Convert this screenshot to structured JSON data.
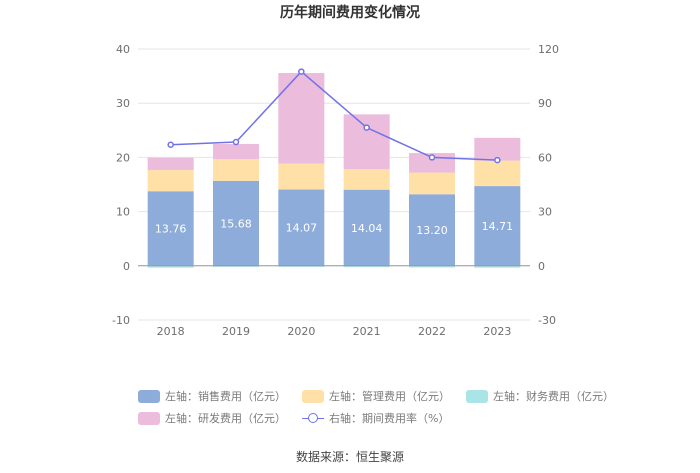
{
  "chart_data": {
    "type": "bar",
    "title": "历年期间费用变化情况",
    "categories": [
      "2018",
      "2019",
      "2020",
      "2021",
      "2022",
      "2023"
    ],
    "left_axis": {
      "min": -10,
      "max": 40,
      "ticks": [
        -10,
        0,
        10,
        20,
        30,
        40
      ]
    },
    "right_axis": {
      "min": -30,
      "max": 120,
      "ticks": [
        -30,
        0,
        30,
        60,
        90,
        120
      ]
    },
    "stacked_series": [
      {
        "name": "左轴：销售费用（亿元）",
        "color": "#8eacd9",
        "values": [
          13.76,
          15.68,
          14.07,
          14.04,
          13.2,
          14.71
        ],
        "labels": [
          "13.76",
          "15.68",
          "14.07",
          "14.04",
          "13.20",
          "14.71"
        ]
      },
      {
        "name": "左轴：管理费用（亿元）",
        "color": "#ffe0a6",
        "values": [
          3.9,
          4.0,
          4.8,
          3.8,
          4.0,
          4.7
        ]
      },
      {
        "name": "左轴：财务费用（亿元）",
        "color": "#a9e5e6",
        "values": [
          -0.35,
          -0.2,
          -0.2,
          -0.25,
          -0.3,
          -0.35
        ]
      },
      {
        "name": "左轴：研发费用（亿元）",
        "color": "#ebbcdc",
        "values": [
          2.3,
          2.8,
          16.7,
          10.1,
          3.6,
          4.2
        ]
      }
    ],
    "line_series": {
      "name": "右轴：期间费用率（%）",
      "color": "#7272e8",
      "values": [
        67,
        68.5,
        107.5,
        76.5,
        60,
        58.5
      ]
    }
  },
  "legend": {
    "sales": "左轴：销售费用（亿元）",
    "admin": "左轴：管理费用（亿元）",
    "finance": "左轴：财务费用（亿元）",
    "rnd": "左轴：研发费用（亿元）",
    "rate": "右轴：期间费用率（%）"
  },
  "source": "数据来源：恒生聚源"
}
